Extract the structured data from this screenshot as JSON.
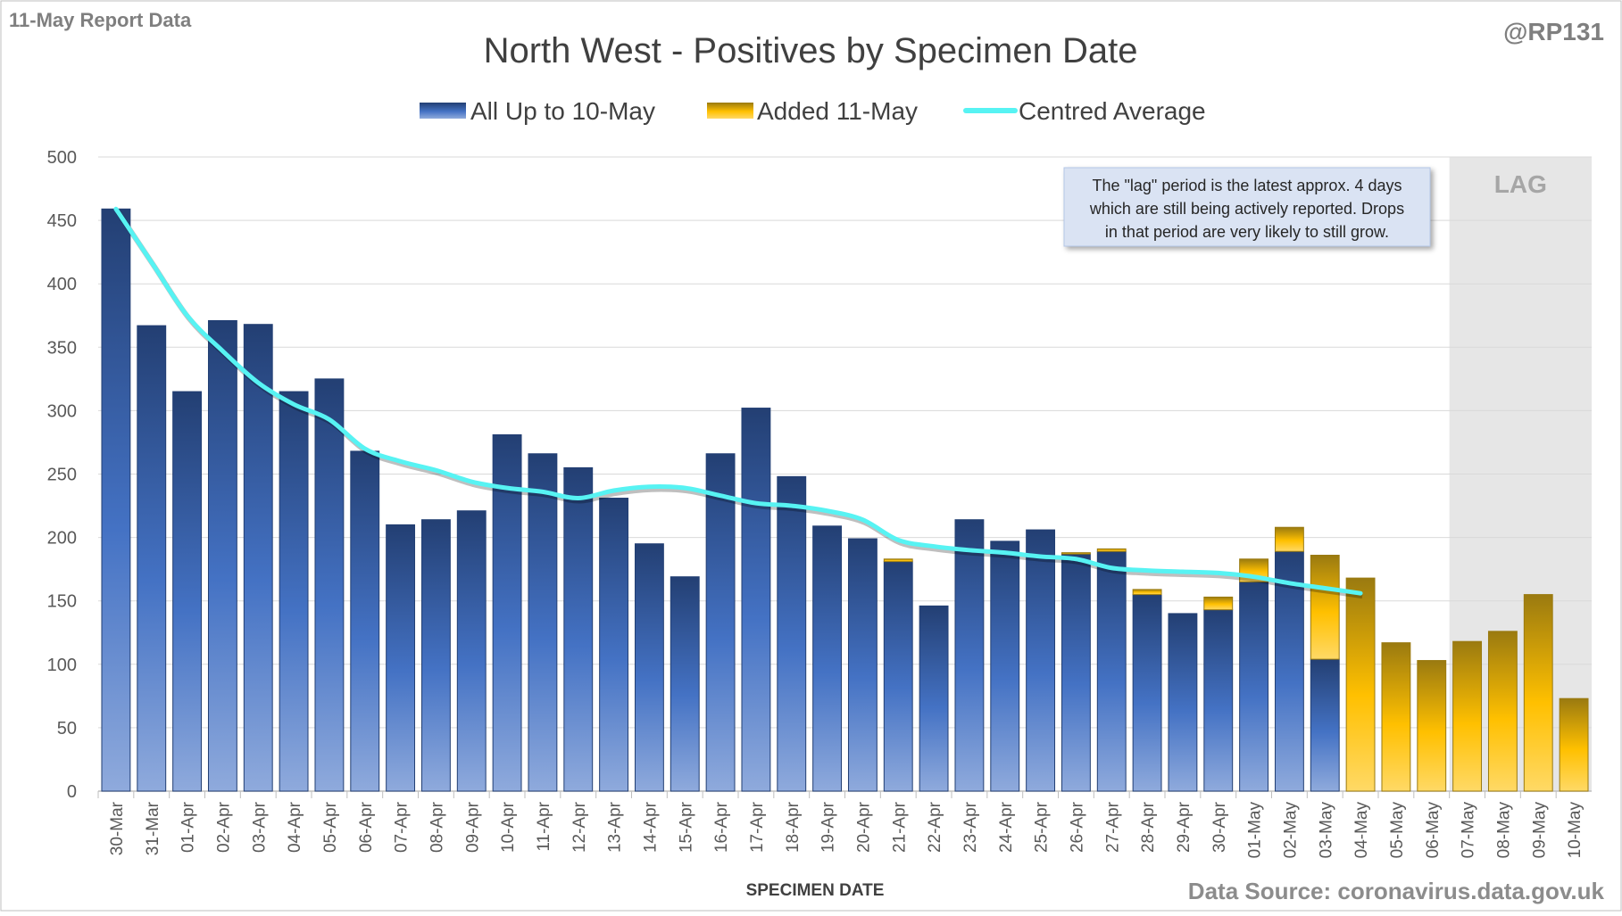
{
  "header": {
    "report_label": "11-May Report Data",
    "author": "@RP131",
    "source": "Data Source: coronavirus.data.gov.uk"
  },
  "annotation": {
    "lines": [
      "The \"lag\" period is the latest approx. 4 days",
      "which are still being actively reported.  Drops",
      "in that period are very likely to still grow."
    ],
    "lag_label": "LAG"
  },
  "colors": {
    "existing_top": "#233f73",
    "existing_mid": "#4472c4",
    "existing_bottom": "#8faadc",
    "added_top": "#9a7a10",
    "added_mid": "#ffc000",
    "added_bottom": "#ffd966",
    "average": "#57f3f3",
    "lag_band": "#e6e6e6",
    "grid": "#d9d9d9",
    "text": "#595959"
  },
  "chart_data": {
    "type": "bar",
    "stacked": true,
    "title": "North West - Positives by Specimen Date",
    "xlabel": "SPECIMEN DATE",
    "ylabel": "",
    "ylim": [
      0,
      500
    ],
    "yticks": [
      0,
      50,
      100,
      150,
      200,
      250,
      300,
      350,
      400,
      450,
      500
    ],
    "legend_position": "top",
    "grid": true,
    "lag_period": [
      "07-May",
      "10-May"
    ],
    "categories": [
      "30-Mar",
      "31-Mar",
      "01-Apr",
      "02-Apr",
      "03-Apr",
      "04-Apr",
      "05-Apr",
      "06-Apr",
      "07-Apr",
      "08-Apr",
      "09-Apr",
      "10-Apr",
      "11-Apr",
      "12-Apr",
      "13-Apr",
      "14-Apr",
      "15-Apr",
      "16-Apr",
      "17-Apr",
      "18-Apr",
      "19-Apr",
      "20-Apr",
      "21-Apr",
      "22-Apr",
      "23-Apr",
      "24-Apr",
      "25-Apr",
      "26-Apr",
      "27-Apr",
      "28-Apr",
      "29-Apr",
      "30-Apr",
      "01-May",
      "02-May",
      "03-May",
      "04-May",
      "05-May",
      "06-May",
      "07-May",
      "08-May",
      "09-May",
      "10-May"
    ],
    "series": [
      {
        "name": "All Up to 10-May",
        "values": [
          459,
          367,
          315,
          371,
          368,
          315,
          325,
          268,
          210,
          214,
          221,
          281,
          266,
          255,
          231,
          195,
          169,
          266,
          302,
          248,
          209,
          199,
          181,
          146,
          214,
          197,
          206,
          187,
          189,
          155,
          140,
          143,
          165,
          189,
          104,
          0,
          0,
          0,
          0,
          0,
          0,
          0
        ]
      },
      {
        "name": "Added 11-May",
        "values": [
          0,
          0,
          0,
          0,
          0,
          0,
          0,
          0,
          0,
          0,
          0,
          0,
          0,
          0,
          0,
          0,
          0,
          0,
          0,
          0,
          0,
          0,
          2,
          0,
          0,
          0,
          0,
          1,
          2,
          4,
          0,
          10,
          18,
          19,
          82,
          168,
          117,
          103,
          118,
          126,
          155,
          73
        ]
      },
      {
        "name": "Centred Average",
        "type": "line",
        "values": [
          459,
          417,
          375,
          347,
          322,
          305,
          293,
          270,
          260,
          253,
          244,
          239,
          236,
          231,
          237,
          240,
          239,
          233,
          227,
          225,
          221,
          214,
          198,
          193,
          190,
          188,
          185,
          183,
          176,
          174,
          173,
          172,
          169,
          164,
          160,
          156,
          null,
          null,
          null,
          null,
          null,
          null
        ]
      }
    ]
  }
}
